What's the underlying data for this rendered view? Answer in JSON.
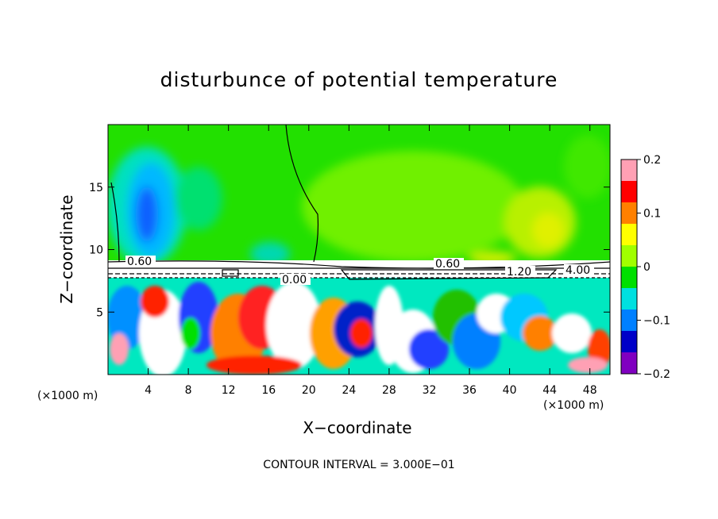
{
  "chart_data": {
    "type": "heatmap",
    "title": "disturbunce of potential temperature",
    "xlabel": "X−coordinate",
    "ylabel": "Z−coordinate",
    "x_unit_label": "(×1000 m)",
    "x_unit_label_right": "(×1000 m)",
    "xlim": [
      0,
      50
    ],
    "ylim": [
      0,
      20
    ],
    "x_ticks": [
      "4",
      "8",
      "12",
      "16",
      "20",
      "24",
      "28",
      "32",
      "36",
      "40",
      "44",
      "48"
    ],
    "y_ticks": [
      "5",
      "10",
      "15"
    ],
    "colorbar": {
      "range": [
        -0.2,
        0.2
      ],
      "ticks": [
        "0.2",
        "0.1",
        "0",
        "−0.1",
        "−0.2"
      ],
      "colors": [
        "#ffa0b4",
        "#ff0000",
        "#ff8000",
        "#ffff00",
        "#a0ff00",
        "#00e000",
        "#00e0e0",
        "#0080ff",
        "#0000c8",
        "#8000c0"
      ]
    },
    "contour_labels": [
      "0.60",
      "0.00",
      "0.60",
      "1.20",
      "4.00"
    ],
    "contour_interval_text": "CONTOUR INTERVAL = 3.000E−01"
  }
}
